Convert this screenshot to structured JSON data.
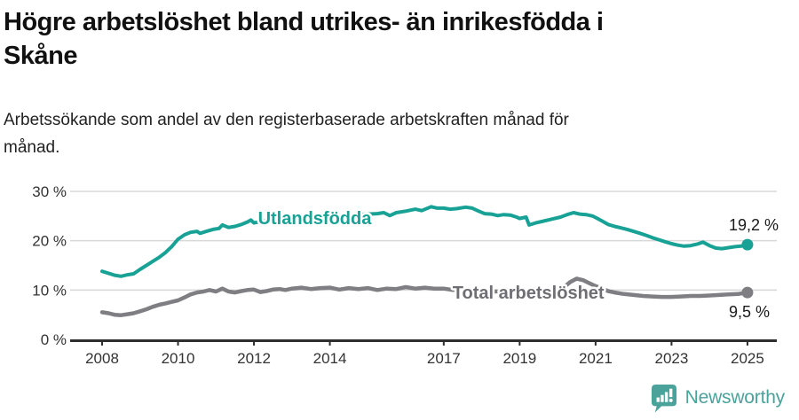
{
  "header": {
    "title": "Högre arbetslöshet bland utrikes- än inrikesfödda i Skåne",
    "title_lines": [
      "Högre arbetslöshet bland utrikes- än inrikesfödda i",
      "Skåne"
    ],
    "subtitle": "Arbetssökande som andel av den registerbaserade arbetskraften månad för månad.",
    "subtitle_lines": [
      "Arbetssökande som andel av den registerbaserade arbetskraften månad för",
      "månad."
    ]
  },
  "footer": {
    "brand": "Newsworthy",
    "brand_color": "#4ba29b"
  },
  "colors": {
    "accent_teal": "#18a296",
    "line_gray": "#7f7f83",
    "label_gray": "#6e6e73",
    "axis": "#2e2e2e",
    "grid": "#d8d8d8",
    "end_label": "#1a1a1a"
  },
  "chart_data": {
    "type": "line",
    "title": "Högre arbetslöshet bland utrikes- än inrikesfödda i Skåne",
    "subtitle": "Arbetssökande som andel av den registerbaserade arbetskraften månad för månad.",
    "xlabel": "",
    "ylabel": "",
    "xlim": [
      2007.4,
      2025.8
    ],
    "ylim": [
      0,
      30
    ],
    "grid": "horizontal",
    "legend_position": "inline-labels",
    "x_axis": {
      "ticks": [
        2008,
        2010,
        2012,
        2014,
        2017,
        2019,
        2021,
        2023,
        2025
      ]
    },
    "y_axis": {
      "ticks": [
        0,
        10,
        20,
        30
      ],
      "tick_suffix": " %",
      "gridlines": [
        10,
        20,
        30
      ]
    },
    "series": [
      {
        "id": "total",
        "name": "Total arbetslöshet",
        "color": "#7f7f83",
        "label_color": "#6e6e73",
        "stroke_width": 4.5,
        "end_label": "9,5 %",
        "end_value": 9.5,
        "label_anchor": [
          2019.23,
          9.5
        ],
        "points": [
          [
            2008.0,
            5.5
          ],
          [
            2008.17,
            5.3
          ],
          [
            2008.33,
            5.0
          ],
          [
            2008.5,
            4.9
          ],
          [
            2008.67,
            5.1
          ],
          [
            2008.83,
            5.3
          ],
          [
            2009.0,
            5.7
          ],
          [
            2009.17,
            6.1
          ],
          [
            2009.33,
            6.6
          ],
          [
            2009.5,
            7.0
          ],
          [
            2009.67,
            7.3
          ],
          [
            2009.83,
            7.6
          ],
          [
            2010.0,
            7.9
          ],
          [
            2010.17,
            8.5
          ],
          [
            2010.33,
            9.1
          ],
          [
            2010.5,
            9.5
          ],
          [
            2010.67,
            9.7
          ],
          [
            2010.83,
            10.0
          ],
          [
            2011.0,
            9.7
          ],
          [
            2011.17,
            10.3
          ],
          [
            2011.33,
            9.7
          ],
          [
            2011.5,
            9.5
          ],
          [
            2011.67,
            9.8
          ],
          [
            2011.83,
            10.0
          ],
          [
            2012.0,
            10.1
          ],
          [
            2012.17,
            9.6
          ],
          [
            2012.33,
            9.8
          ],
          [
            2012.5,
            10.1
          ],
          [
            2012.67,
            10.2
          ],
          [
            2012.83,
            10.0
          ],
          [
            2013.0,
            10.3
          ],
          [
            2013.25,
            10.5
          ],
          [
            2013.5,
            10.2
          ],
          [
            2013.75,
            10.4
          ],
          [
            2014.0,
            10.5
          ],
          [
            2014.25,
            10.1
          ],
          [
            2014.5,
            10.4
          ],
          [
            2014.75,
            10.2
          ],
          [
            2015.0,
            10.4
          ],
          [
            2015.25,
            10.0
          ],
          [
            2015.5,
            10.3
          ],
          [
            2015.75,
            10.2
          ],
          [
            2016.0,
            10.6
          ],
          [
            2016.25,
            10.3
          ],
          [
            2016.5,
            10.5
          ],
          [
            2016.75,
            10.3
          ],
          [
            2017.0,
            10.3
          ],
          [
            2017.25,
            10.0
          ],
          [
            2017.5,
            10.1
          ],
          [
            2017.75,
            9.9
          ],
          [
            2018.0,
            9.9
          ],
          [
            2018.33,
            9.7
          ],
          [
            2018.67,
            9.8
          ],
          [
            2019.0,
            9.6
          ],
          [
            2019.33,
            9.5
          ],
          [
            2019.67,
            9.3
          ],
          [
            2020.0,
            9.6
          ],
          [
            2020.17,
            10.6
          ],
          [
            2020.33,
            11.6
          ],
          [
            2020.5,
            12.3
          ],
          [
            2020.67,
            12.0
          ],
          [
            2020.83,
            11.4
          ],
          [
            2021.0,
            10.8
          ],
          [
            2021.17,
            10.3
          ],
          [
            2021.33,
            9.8
          ],
          [
            2021.5,
            9.5
          ],
          [
            2021.75,
            9.2
          ],
          [
            2022.0,
            9.0
          ],
          [
            2022.25,
            8.8
          ],
          [
            2022.5,
            8.7
          ],
          [
            2022.75,
            8.6
          ],
          [
            2023.0,
            8.6
          ],
          [
            2023.25,
            8.7
          ],
          [
            2023.5,
            8.8
          ],
          [
            2023.75,
            8.8
          ],
          [
            2024.0,
            8.9
          ],
          [
            2024.25,
            9.0
          ],
          [
            2024.5,
            9.1
          ],
          [
            2024.75,
            9.2
          ],
          [
            2025.0,
            9.5
          ]
        ]
      },
      {
        "id": "utlandsfodda",
        "name": "Utlandsfödda",
        "color": "#18a296",
        "label_color": "#18a296",
        "stroke_width": 4,
        "end_label": "19,2 %",
        "end_value": 19.2,
        "label_anchor": [
          2013.6,
          24.6
        ],
        "points": [
          [
            2008.0,
            13.8
          ],
          [
            2008.17,
            13.4
          ],
          [
            2008.33,
            13.0
          ],
          [
            2008.5,
            12.8
          ],
          [
            2008.67,
            13.1
          ],
          [
            2008.83,
            13.3
          ],
          [
            2009.0,
            14.2
          ],
          [
            2009.17,
            15.0
          ],
          [
            2009.33,
            15.8
          ],
          [
            2009.5,
            16.6
          ],
          [
            2009.67,
            17.6
          ],
          [
            2009.83,
            18.8
          ],
          [
            2010.0,
            20.3
          ],
          [
            2010.17,
            21.2
          ],
          [
            2010.33,
            21.7
          ],
          [
            2010.5,
            21.9
          ],
          [
            2010.58,
            21.5
          ],
          [
            2010.75,
            21.9
          ],
          [
            2010.92,
            22.3
          ],
          [
            2011.08,
            22.5
          ],
          [
            2011.17,
            23.2
          ],
          [
            2011.33,
            22.7
          ],
          [
            2011.5,
            22.9
          ],
          [
            2011.67,
            23.3
          ],
          [
            2011.83,
            23.8
          ],
          [
            2011.92,
            24.2
          ],
          [
            2012.0,
            23.6
          ],
          [
            2012.17,
            23.9
          ],
          [
            2012.33,
            24.0
          ],
          [
            2012.5,
            24.1
          ],
          [
            2012.75,
            24.3
          ],
          [
            2013.0,
            24.4
          ],
          [
            2013.25,
            24.6
          ],
          [
            2013.5,
            24.7
          ],
          [
            2013.75,
            24.8
          ],
          [
            2014.0,
            24.9
          ],
          [
            2014.25,
            25.0
          ],
          [
            2014.5,
            25.2
          ],
          [
            2014.75,
            25.3
          ],
          [
            2015.0,
            25.4
          ],
          [
            2015.25,
            25.5
          ],
          [
            2015.42,
            25.7
          ],
          [
            2015.58,
            25.1
          ],
          [
            2015.75,
            25.7
          ],
          [
            2016.0,
            26.0
          ],
          [
            2016.25,
            26.4
          ],
          [
            2016.42,
            26.1
          ],
          [
            2016.67,
            26.9
          ],
          [
            2016.83,
            26.6
          ],
          [
            2017.0,
            26.6
          ],
          [
            2017.17,
            26.4
          ],
          [
            2017.33,
            26.5
          ],
          [
            2017.58,
            26.8
          ],
          [
            2017.75,
            26.6
          ],
          [
            2017.92,
            26.0
          ],
          [
            2018.08,
            25.5
          ],
          [
            2018.25,
            25.4
          ],
          [
            2018.42,
            25.1
          ],
          [
            2018.58,
            25.3
          ],
          [
            2018.75,
            25.2
          ],
          [
            2018.92,
            24.8
          ],
          [
            2019.0,
            24.5
          ],
          [
            2019.17,
            24.8
          ],
          [
            2019.25,
            23.2
          ],
          [
            2019.42,
            23.6
          ],
          [
            2019.58,
            23.9
          ],
          [
            2019.75,
            24.2
          ],
          [
            2019.92,
            24.5
          ],
          [
            2020.08,
            24.8
          ],
          [
            2020.25,
            25.3
          ],
          [
            2020.42,
            25.7
          ],
          [
            2020.58,
            25.4
          ],
          [
            2020.75,
            25.3
          ],
          [
            2020.92,
            25.0
          ],
          [
            2021.0,
            24.7
          ],
          [
            2021.17,
            24.0
          ],
          [
            2021.33,
            23.3
          ],
          [
            2021.5,
            22.9
          ],
          [
            2021.67,
            22.6
          ],
          [
            2021.83,
            22.3
          ],
          [
            2022.0,
            21.9
          ],
          [
            2022.17,
            21.5
          ],
          [
            2022.33,
            21.1
          ],
          [
            2022.5,
            20.6
          ],
          [
            2022.67,
            20.2
          ],
          [
            2022.83,
            19.8
          ],
          [
            2023.0,
            19.4
          ],
          [
            2023.17,
            19.1
          ],
          [
            2023.33,
            18.9
          ],
          [
            2023.5,
            19.0
          ],
          [
            2023.67,
            19.3
          ],
          [
            2023.83,
            19.7
          ],
          [
            2024.0,
            19.0
          ],
          [
            2024.17,
            18.5
          ],
          [
            2024.33,
            18.4
          ],
          [
            2024.5,
            18.6
          ],
          [
            2024.67,
            18.8
          ],
          [
            2024.83,
            18.9
          ],
          [
            2025.0,
            19.2
          ]
        ]
      }
    ]
  }
}
